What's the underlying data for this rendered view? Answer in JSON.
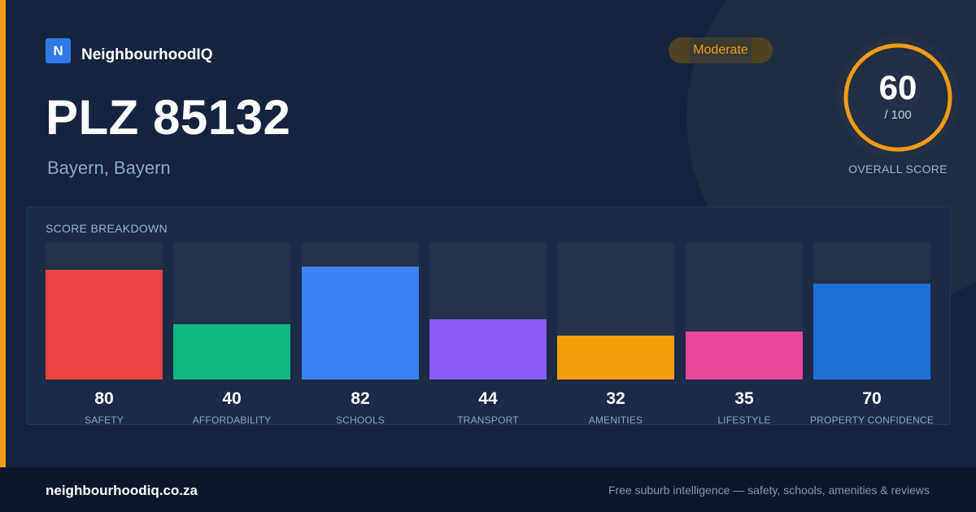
{
  "brand": {
    "logo_letter": "N",
    "name": "NeighbourhoodIQ",
    "accent": "#f39c12"
  },
  "header": {
    "title": "PLZ 85132",
    "subtitle": "Bayern, Bayern"
  },
  "rating": {
    "badge": "Moderate",
    "badge_color": "#f39c12"
  },
  "overall": {
    "value": "60",
    "max_label": "/ 100",
    "fraction": 0.6,
    "caption": "OVERALL SCORE",
    "ring_color": "#f39c12"
  },
  "breakdown": {
    "heading": "SCORE BREAKDOWN",
    "items": [
      {
        "label": "SAFETY",
        "value": "80",
        "fraction": 0.8,
        "color": "#ef4444"
      },
      {
        "label": "AFFORDABILITY",
        "value": "40",
        "fraction": 0.4,
        "color": "#10b981"
      },
      {
        "label": "SCHOOLS",
        "value": "82",
        "fraction": 0.82,
        "color": "#3b82f6"
      },
      {
        "label": "TRANSPORT",
        "value": "44",
        "fraction": 0.44,
        "color": "#8b5cf6"
      },
      {
        "label": "AMENITIES",
        "value": "32",
        "fraction": 0.32,
        "color": "#f59e0b"
      },
      {
        "label": "LIFESTYLE",
        "value": "35",
        "fraction": 0.35,
        "color": "#ec4899"
      },
      {
        "label": "PROPERTY CONFIDENCE",
        "value": "70",
        "fraction": 0.7,
        "color": "#1d6fd8"
      }
    ]
  },
  "footer": {
    "site": "neighbourhoodiq.co.za",
    "tagline": "Free suburb intelligence — safety, schools, amenities & reviews"
  }
}
